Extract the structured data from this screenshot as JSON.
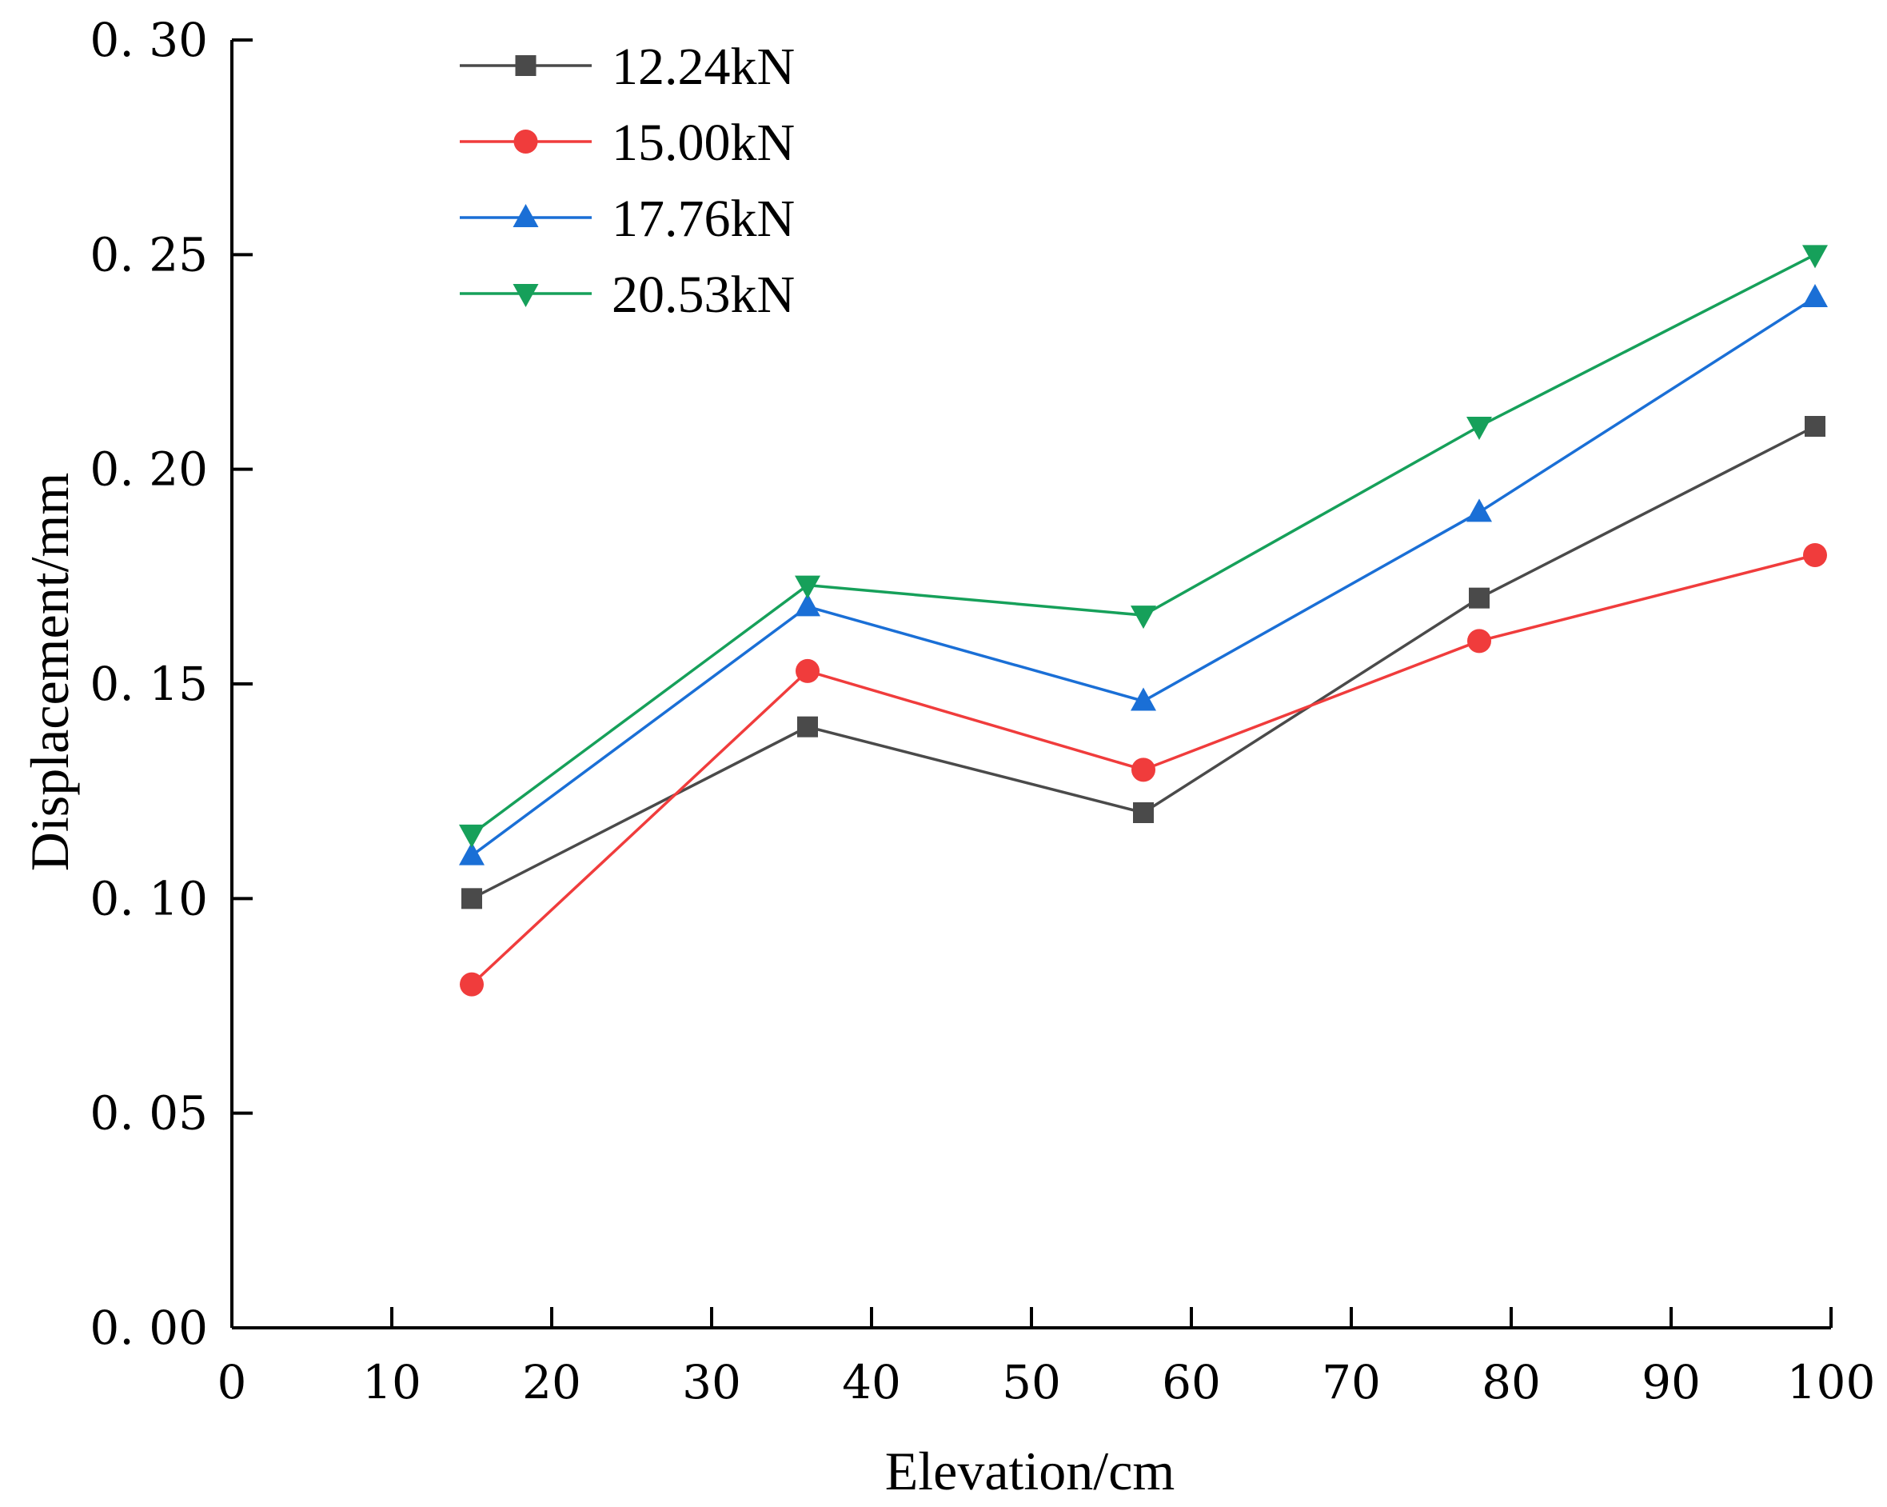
{
  "chart_data": {
    "type": "line",
    "title": "",
    "xlabel": "Elevation/cm",
    "ylabel": "Displacement/mm",
    "xlim": [
      0,
      100
    ],
    "ylim": [
      0,
      0.3
    ],
    "xticks": [
      0,
      10,
      20,
      30,
      40,
      50,
      60,
      70,
      80,
      90,
      100
    ],
    "xtick_labels": [
      "0",
      "10",
      "20",
      "30",
      "40",
      "50",
      "60",
      "70",
      "80",
      "90",
      "100"
    ],
    "yticks": [
      0,
      0.05,
      0.1,
      0.15,
      0.2,
      0.25,
      0.3
    ],
    "ytick_labels": [
      "0. 00",
      "0. 05",
      "0. 10",
      "0. 15",
      "0. 20",
      "0. 25",
      "0. 30"
    ],
    "grid": false,
    "legend_position": "top-left",
    "x": [
      15,
      36,
      57,
      78,
      99
    ],
    "series": [
      {
        "name": "12.24kN",
        "color": "#4a4a4a",
        "marker": "square",
        "values": [
          0.1,
          0.14,
          0.12,
          0.17,
          0.21
        ]
      },
      {
        "name": "15.00kN",
        "color": "#f03c3c",
        "marker": "circle",
        "values": [
          0.08,
          0.153,
          0.13,
          0.16,
          0.18
        ]
      },
      {
        "name": "17.76kN",
        "color": "#1a6fd6",
        "marker": "triangle-up",
        "values": [
          0.11,
          0.168,
          0.146,
          0.19,
          0.24
        ]
      },
      {
        "name": "20.53kN",
        "color": "#16a05a",
        "marker": "triangle-down",
        "values": [
          0.115,
          0.173,
          0.166,
          0.21,
          0.25
        ]
      }
    ]
  }
}
